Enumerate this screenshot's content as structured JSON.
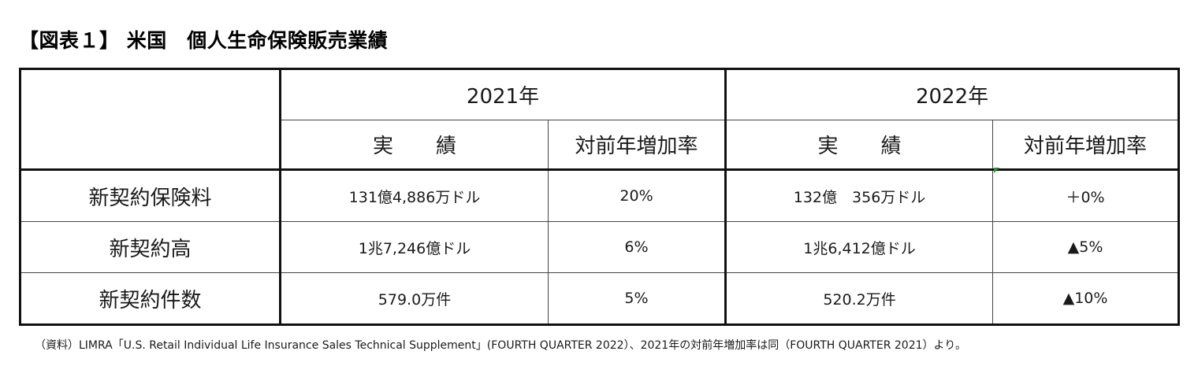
{
  "title": "【図表１】 米国　個人生命保険販売業績",
  "table": {
    "years": [
      "2021年",
      "2022年"
    ],
    "subheaders": [
      "実　績",
      "対前年増加率",
      "実　績",
      "対前年増加率"
    ],
    "rows": [
      {
        "label": "新契約保険料",
        "v2021": "131億4,886万ドル",
        "g2021": "20%",
        "v2022": "132億　356万ドル",
        "g2022": "＋0%"
      },
      {
        "label": "新契約高",
        "v2021": "1兆7,246億ドル",
        "g2021": "6%",
        "v2022": "1兆6,412億ドル",
        "g2022": "▲5%"
      },
      {
        "label": "新契約件数",
        "v2021": "579.0万件",
        "g2021": "5%",
        "v2022": "520.2万件",
        "g2022": "▲10%"
      }
    ]
  },
  "note": "（資料）LIMRA「U.S. Retail Individual Life Insurance Sales Technical Supplement」(FOURTH QUARTER 2022）、2021年の対前年増加率は同（FOURTH QUARTER 2021）より。"
}
